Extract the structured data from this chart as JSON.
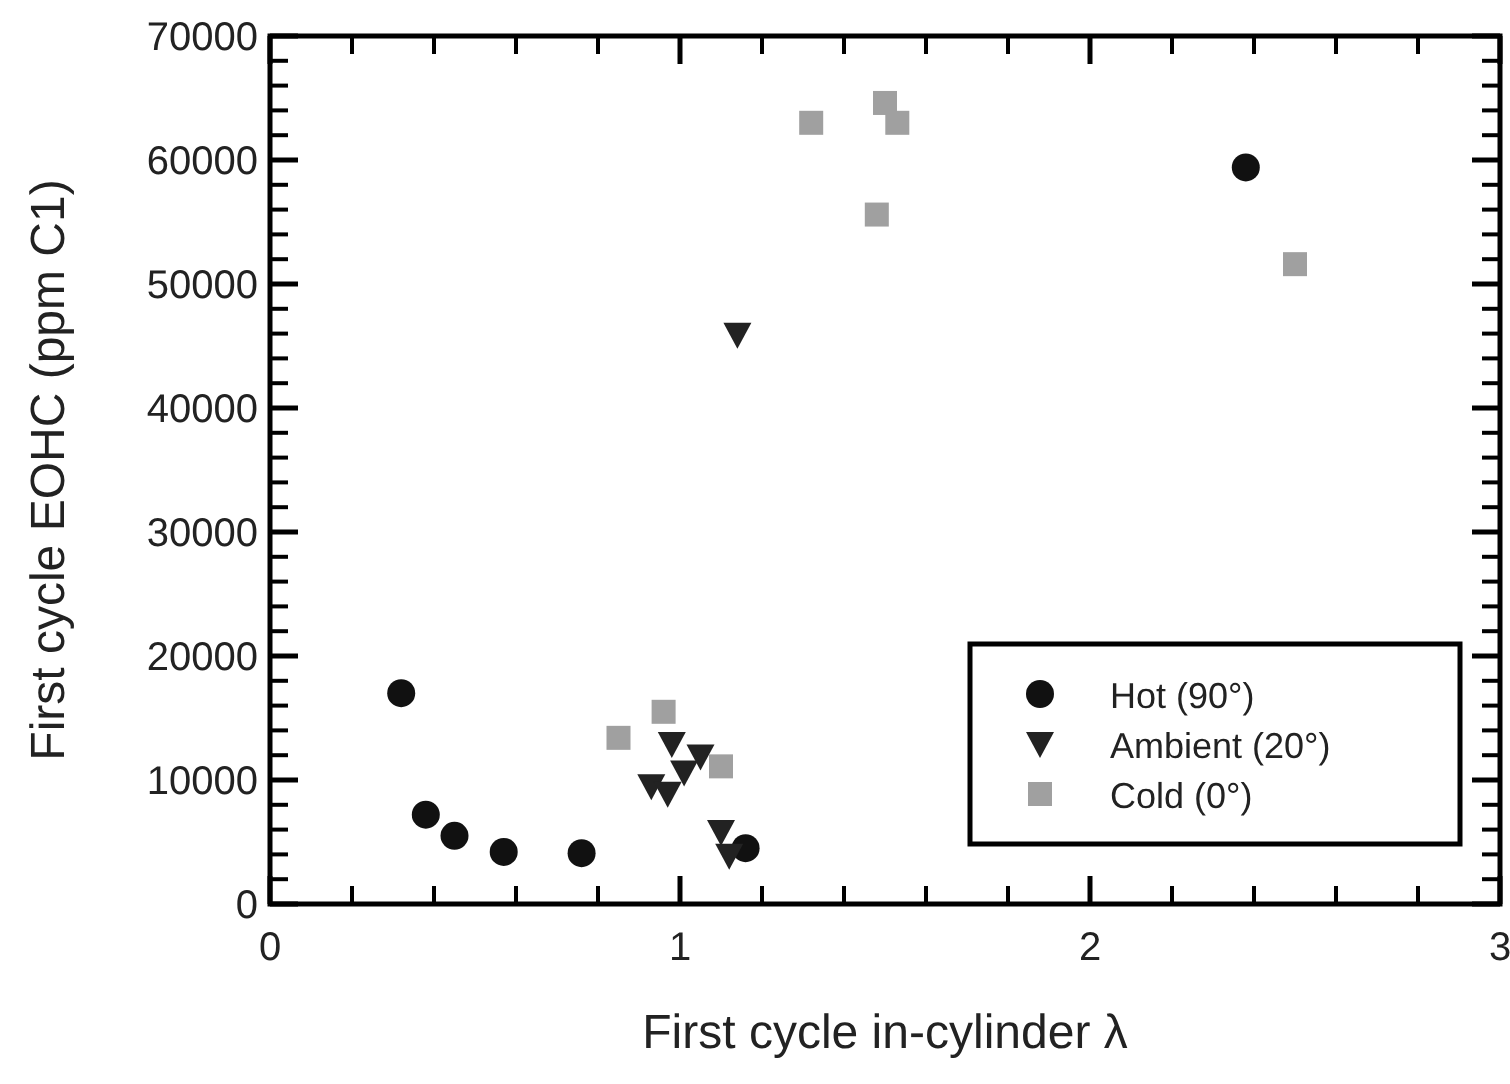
{
  "chart_data": {
    "type": "scatter",
    "xlabel": "First cycle in-cylinder λ",
    "ylabel": "First cycle EOHC (ppm C1)",
    "xlim": [
      0,
      3
    ],
    "xticks": [
      0,
      1,
      2,
      3
    ],
    "ylim": [
      0,
      70000
    ],
    "yticks": [
      0,
      10000,
      20000,
      30000,
      40000,
      50000,
      60000,
      70000
    ],
    "grid": false,
    "legend": "bottom right",
    "series": [
      {
        "name": "Hot (90°)",
        "color": "#111111",
        "marker": "circle",
        "x": [
          0.32,
          0.38,
          0.45,
          0.57,
          0.76,
          1.16,
          2.38
        ],
        "values": [
          17000,
          7200,
          5500,
          4200,
          4100,
          4500,
          59400
        ]
      },
      {
        "name": "Ambient (20°)",
        "color": "#222222",
        "marker": "triangle",
        "x": [
          0.98,
          1.05,
          1.01,
          0.93,
          0.97,
          1.1,
          1.12,
          1.14
        ],
        "values": [
          12900,
          11900,
          10600,
          9500,
          8900,
          5800,
          3900,
          45900
        ]
      },
      {
        "name": "Cold (0°)",
        "color": "#a0a0a0",
        "marker": "square",
        "x": [
          0.85,
          0.96,
          1.1,
          1.32,
          1.5,
          1.53,
          1.48,
          2.5
        ],
        "values": [
          13400,
          15500,
          11100,
          63000,
          64600,
          63000,
          55600,
          51600
        ]
      }
    ]
  }
}
